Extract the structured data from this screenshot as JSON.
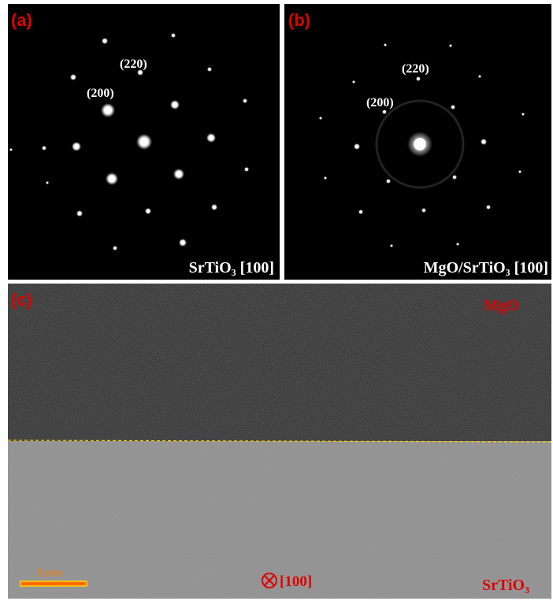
{
  "panels": {
    "a": {
      "label": "(a)",
      "spot_labels": [
        "(220)",
        "(200)"
      ],
      "caption": "SrTiO₃ [100]"
    },
    "b": {
      "label": "(b)",
      "spot_labels": [
        "(220)",
        "(200)"
      ],
      "caption": "MgO/SrTiO₃ [100]"
    },
    "c": {
      "label": "(c)",
      "top_layer": "MgO",
      "bottom_layer": "SrTiO₃",
      "direction": "[100]",
      "scale_bar": "5 nm"
    }
  }
}
